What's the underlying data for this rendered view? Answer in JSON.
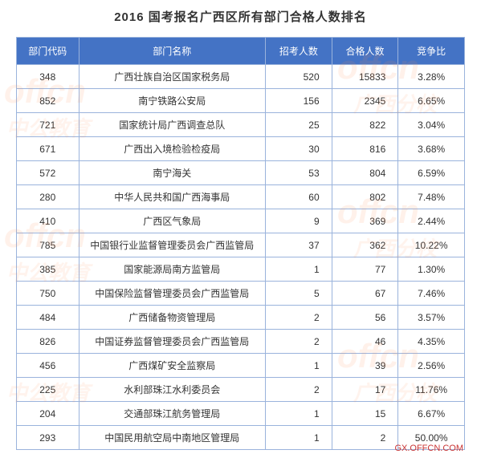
{
  "title": "2016 国考报名广西区所有部门合格人数排名",
  "footer_url": "GX.OFFCN.COM",
  "headers": {
    "code": "部门代码",
    "name": "部门名称",
    "recruit": "招考人数",
    "qualified": "合格人数",
    "ratio": "竞争比"
  },
  "rows": [
    {
      "code": "348",
      "name": "广西壮族自治区国家税务局",
      "recruit": "520",
      "qualified": "15833",
      "ratio": "3.28%"
    },
    {
      "code": "852",
      "name": "南宁铁路公安局",
      "recruit": "156",
      "qualified": "2345",
      "ratio": "6.65%"
    },
    {
      "code": "721",
      "name": "国家统计局广西调查总队",
      "recruit": "25",
      "qualified": "822",
      "ratio": "3.04%"
    },
    {
      "code": "671",
      "name": "广西出入境检验检疫局",
      "recruit": "30",
      "qualified": "816",
      "ratio": "3.68%"
    },
    {
      "code": "572",
      "name": "南宁海关",
      "recruit": "53",
      "qualified": "804",
      "ratio": "6.59%"
    },
    {
      "code": "280",
      "name": "中华人民共和国广西海事局",
      "recruit": "60",
      "qualified": "802",
      "ratio": "7.48%"
    },
    {
      "code": "410",
      "name": "广西区气象局",
      "recruit": "9",
      "qualified": "369",
      "ratio": "2.44%"
    },
    {
      "code": "785",
      "name": "中国银行业监督管理委员会广西监管局",
      "recruit": "37",
      "qualified": "362",
      "ratio": "10.22%"
    },
    {
      "code": "385",
      "name": "国家能源局南方监管局",
      "recruit": "1",
      "qualified": "77",
      "ratio": "1.30%"
    },
    {
      "code": "750",
      "name": "中国保险监督管理委员会广西监管局",
      "recruit": "5",
      "qualified": "67",
      "ratio": "7.46%"
    },
    {
      "code": "484",
      "name": "广西储备物资管理局",
      "recruit": "2",
      "qualified": "56",
      "ratio": "3.57%"
    },
    {
      "code": "826",
      "name": "中国证券监督管理委员会广西监管局",
      "recruit": "2",
      "qualified": "46",
      "ratio": "4.35%"
    },
    {
      "code": "456",
      "name": "广西煤矿安全监察局",
      "recruit": "1",
      "qualified": "39",
      "ratio": "2.56%"
    },
    {
      "code": "225",
      "name": "水利部珠江水利委员会",
      "recruit": "2",
      "qualified": "17",
      "ratio": "11.76%"
    },
    {
      "code": "204",
      "name": "交通部珠江航务管理局",
      "recruit": "1",
      "qualified": "15",
      "ratio": "6.67%"
    },
    {
      "code": "293",
      "name": "中国民用航空局中南地区管理局",
      "recruit": "1",
      "qualified": "2",
      "ratio": "50.00%"
    }
  ],
  "watermarks": {
    "en": "offcn",
    "cn1": "中公教育",
    "cn2": "广西分校"
  },
  "styling": {
    "header_bg": "#4473c5",
    "header_text": "#ffffff",
    "border_color": "#9ab3dc",
    "title_fontsize": 15,
    "body_fontsize": 12,
    "watermark_color": "rgba(255,140,80,0.12)",
    "footer_color": "#c93434"
  }
}
